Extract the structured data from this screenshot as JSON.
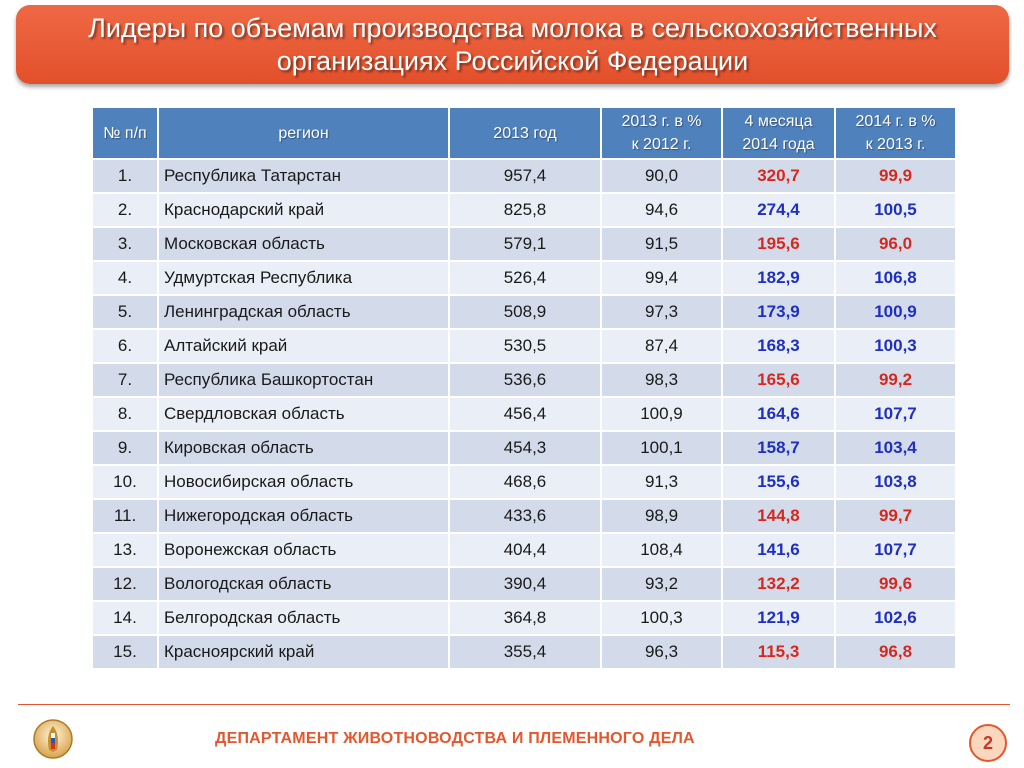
{
  "title": "Лидеры по объемам производства молока в сельскохозяйственных организациях Российской Федерации",
  "table": {
    "headers": {
      "num": "№ п/п",
      "region": "регион",
      "y2013": "2013 год",
      "pct2013_line1": "2013 г. в %",
      "pct2013_line2": "к  2012 г.",
      "m4_line1": "4 месяца",
      "m4_line2": "2014 года",
      "pct2014_line1": "2014 г. в %",
      "pct2014_line2": "к  2013 г."
    },
    "rows": [
      {
        "num": "1.",
        "region": "Республика Татарстан",
        "y2013": "957,4",
        "pct2013": "90,0",
        "m4_2014": "320,7",
        "pct2014": "99,9",
        "status": "down"
      },
      {
        "num": "2.",
        "region": "Краснодарский край",
        "y2013": "825,8",
        "pct2013": "94,6",
        "m4_2014": "274,4",
        "pct2014": "100,5",
        "status": "up"
      },
      {
        "num": "3.",
        "region": "Московская область",
        "y2013": "579,1",
        "pct2013": "91,5",
        "m4_2014": "195,6",
        "pct2014": "96,0",
        "status": "down"
      },
      {
        "num": "4.",
        "region": "Удмуртская Республика",
        "y2013": "526,4",
        "pct2013": "99,4",
        "m4_2014": "182,9",
        "pct2014": "106,8",
        "status": "up"
      },
      {
        "num": "5.",
        "region": "Ленинградская область",
        "y2013": "508,9",
        "pct2013": "97,3",
        "m4_2014": "173,9",
        "pct2014": "100,9",
        "status": "up"
      },
      {
        "num": "6.",
        "region": "Алтайский край",
        "y2013": "530,5",
        "pct2013": "87,4",
        "m4_2014": "168,3",
        "pct2014": "100,3",
        "status": "up"
      },
      {
        "num": "7.",
        "region": "Республика Башкортостан",
        "y2013": "536,6",
        "pct2013": "98,3",
        "m4_2014": "165,6",
        "pct2014": "99,2",
        "status": "down"
      },
      {
        "num": "8.",
        "region": "Свердловская область",
        "y2013": "456,4",
        "pct2013": "100,9",
        "m4_2014": "164,6",
        "pct2014": "107,7",
        "status": "up"
      },
      {
        "num": "9.",
        "region": "Кировская область",
        "y2013": "454,3",
        "pct2013": "100,1",
        "m4_2014": "158,7",
        "pct2014": "103,4",
        "status": "up"
      },
      {
        "num": "10.",
        "region": "Новосибирская область",
        "y2013": "468,6",
        "pct2013": "91,3",
        "m4_2014": "155,6",
        "pct2014": "103,8",
        "status": "up"
      },
      {
        "num": "11.",
        "region": "Нижегородская область",
        "y2013": "433,6",
        "pct2013": "98,9",
        "m4_2014": "144,8",
        "pct2014": "99,7",
        "status": "down"
      },
      {
        "num": "13.",
        "region": "Воронежская область",
        "y2013": "404,4",
        "pct2013": "108,4",
        "m4_2014": "141,6",
        "pct2014": "107,7",
        "status": "up"
      },
      {
        "num": "12.",
        "region": "Вологодская область",
        "y2013": "390,4",
        "pct2013": "93,2",
        "m4_2014": "132,2",
        "pct2014": "99,6",
        "status": "down"
      },
      {
        "num": "14.",
        "region": "Белгородская область",
        "y2013": "364,8",
        "pct2013": "100,3",
        "m4_2014": "121,9",
        "pct2014": "102,6",
        "status": "up"
      },
      {
        "num": "15.",
        "region": "Красноярский край",
        "y2013": "355,4",
        "pct2013": "96,3",
        "m4_2014": "115,3",
        "pct2014": "96,8",
        "status": "down"
      }
    ]
  },
  "footer": {
    "department": "ДЕПАРТАМЕНТ ЖИВОТНОВОДСТВА И ПЛЕМЕННОГО ДЕЛА",
    "page_number": "2",
    "logo_icon": "ministry-emblem-icon"
  },
  "colors": {
    "accent": "#e4572e",
    "header_blue": "#4f81bd",
    "up": "#1f2fbf",
    "down": "#d8281e"
  }
}
